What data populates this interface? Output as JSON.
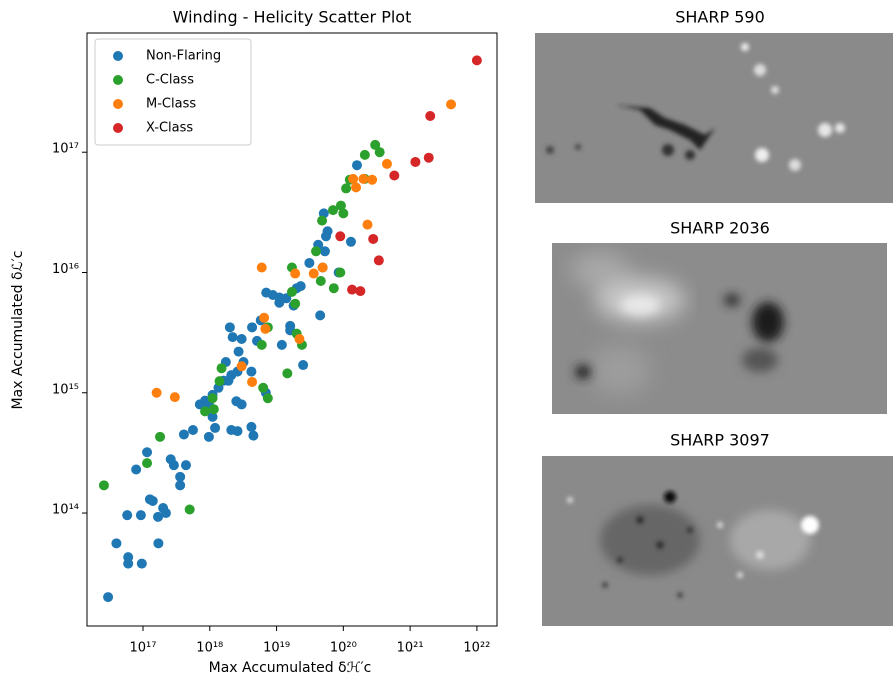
{
  "chart_data": {
    "type": "scatter",
    "title": "Winding - Helicity Scatter Plot",
    "x_label": "Max Accumulated δℋ′c",
    "y_label": "Max Accumulated δℒ′c",
    "log_x": true,
    "log_y": true,
    "grid": false,
    "legend": "upper left",
    "xlim": [
      1.45e+16,
      2e+22
    ],
    "ylim": [
      11500000000000.0,
      9.8e+17
    ],
    "xticks": [
      {
        "value": 1e+17,
        "label": "10¹⁷"
      },
      {
        "value": 1e+18,
        "label": "10¹⁸"
      },
      {
        "value": 1e+19,
        "label": "10¹⁹"
      },
      {
        "value": 1e+20,
        "label": "10²⁰"
      },
      {
        "value": 1e+21,
        "label": "10²¹"
      },
      {
        "value": 1e+22,
        "label": "10²²"
      }
    ],
    "yticks": [
      {
        "value": 100000000000000.0,
        "label": "10¹⁴"
      },
      {
        "value": 1000000000000000.0,
        "label": "10¹⁵"
      },
      {
        "value": 1e+16,
        "label": "10¹⁶"
      },
      {
        "value": 1e+17,
        "label": "10¹⁷"
      }
    ],
    "series": [
      {
        "name": "Non-Flaring",
        "color": "#1f77b4",
        "x": [
          3e+16,
          4e+16,
          6e+16,
          6e+16,
          9.6e+16,
          5.8e+16,
          9.3e+16,
          1.7e+17,
          1.68e+17,
          1.27e+17,
          1.4e+17,
          2e+17,
          2.2e+17,
          7.9e+16,
          1.15e+17,
          2.6e+17,
          2.9e+17,
          3.6e+17,
          3.6e+17,
          4.4e+17,
          4.1e+17,
          5.6e+17,
          9.7e+17,
          1.2e+18,
          2.1e+18,
          2.6e+18,
          4.2e+18,
          4.5e+18,
          8.5e+17,
          9.7e+17,
          1.1e+18,
          1.6e+18,
          2.5e+18,
          3e+18,
          1.1e+18,
          1.35e+18,
          2.1e+18,
          3.2e+18,
          2.6e+18,
          1.74e+18,
          2.7e+18,
          3e+18,
          2.2e+18,
          2e+18,
          4.3e+18,
          5.1e+18,
          5.8e+18,
          1.2e+19,
          6.9e+18,
          1.6e+19,
          1.6e+19,
          2.5e+19,
          1.1e+19,
          7e+18,
          8.8e+18,
          1.1e+19,
          1.4e+19,
          1.8e+19,
          2e+19,
          2.3e+19,
          3.1e+19,
          4.2e+19,
          5.1e+19,
          5.8e+19,
          5.5e+19,
          5.3e+19,
          4.9e+19,
          8.5e+19,
          1.3e+20,
          1.6e+20,
          4.5e+19,
          4.2e+18,
          1.9e+18,
          7.1e+17
        ],
        "values": [
          20000000000000.0,
          56000000000000.0,
          43000000000000.0,
          38000000000000.0,
          38000000000000.0,
          96000000000000.0,
          96000000000000.0,
          56000000000000.0,
          93000000000000.0,
          130000000000000.0,
          126000000000000.0,
          110000000000000.0,
          100000000000000.0,
          230000000000000.0,
          320000000000000.0,
          280000000000000.0,
          250000000000000.0,
          200000000000000.0,
          170000000000000.0,
          250000000000000.0,
          450000000000000.0,
          490000000000000.0,
          430000000000000.0,
          510000000000000.0,
          490000000000000.0,
          480000000000000.0,
          520000000000000.0,
          440000000000000.0,
          860000000000000.0,
          800000000000000.0,
          630000000000000.0,
          1260000000000000.0,
          850000000000000.0,
          800000000000000.0,
          960000000000000.0,
          1100000000000000.0,
          1400000000000000.0,
          1800000000000000.0,
          1500000000000000.0,
          1800000000000000.0,
          2200000000000000.0,
          2800000000000000.0,
          2900000000000000.0,
          3500000000000000.0,
          3500000000000000.0,
          2700000000000000.0,
          4000000000000000.0,
          2500000000000000.0,
          1000000000000000.0,
          3600000000000000.0,
          3300000000000000.0,
          1700000000000000.0,
          5600000000000000.0,
          6800000000000000.0,
          6500000000000000.0,
          6200000000000000.0,
          6100000000000000.0,
          5300000000000000.0,
          7400000000000000.0,
          7700000000000000.0,
          1.2e+16,
          1.7e+16,
          3.1e+16,
          2.2e+16,
          2e+16,
          1.5e+16,
          1.1e+16,
          1e+16,
          1.8e+16,
          7.8e+16,
          4400000000000000.0,
          1500000000000000.0,
          1260000000000000.0,
          800000000000000.0
        ]
      },
      {
        "name": "C-Class",
        "color": "#2ca02c",
        "x": [
          2.6e+16,
          5e+17,
          1.15e+17,
          1.8e+17,
          8.5e+17,
          1.15e+18,
          1.5e+18,
          6.3e+18,
          7.4e+18,
          6e+18,
          1.45e+19,
          2.4e+19,
          2e+19,
          1.9e+19,
          1.7e+19,
          4.6e+19,
          7.2e+19,
          9e+19,
          3.9e+19,
          4.8e+19,
          7e+19,
          9.2e+19,
          1.1e+20,
          1.25e+20,
          2.1e+20,
          3e+20,
          3.5e+20,
          2.1e+20,
          1e+20,
          1.7e+19,
          1.4e+18,
          1.1e+18,
          7.4e+18
        ],
        "values": [
          170000000000000.0,
          107000000000000.0,
          260000000000000.0,
          430000000000000.0,
          700000000000000.0,
          730000000000000.0,
          1600000000000000.0,
          1100000000000000.0,
          900000000000000.0,
          2500000000000000.0,
          1450000000000000.0,
          2500000000000000.0,
          3100000000000000.0,
          5500000000000000.0,
          1.1e+16,
          8500000000000000.0,
          7400000000000000.0,
          1e+16,
          1.5e+16,
          2.7e+16,
          3.3e+16,
          3.6e+16,
          5e+16,
          5.9e+16,
          9.5e+16,
          1.15e+17,
          1e+17,
          6e+16,
          3.1e+16,
          6900000000000000.0,
          1250000000000000.0,
          900000000000000.0,
          3500000000000000.0
        ]
      },
      {
        "name": "M-Class",
        "color": "#ff7f0e",
        "x": [
          4.1e+21,
          4.5e+20,
          2.7e+20,
          2e+20,
          1.55e+20,
          1.4e+20,
          2.3e+20,
          1.9e+19,
          3.6e+19,
          4.9e+19,
          6e+18,
          6.5e+18,
          6.8e+18,
          3e+18,
          4.3e+18,
          2.2e+19,
          1.6e+17,
          3e+17
        ],
        "values": [
          2.5e+17,
          8e+16,
          5.9e+16,
          6e+16,
          5.1e+16,
          6e+16,
          2.5e+16,
          9800000000000000.0,
          9800000000000000.0,
          1.1e+16,
          1.1e+16,
          4200000000000000.0,
          3400000000000000.0,
          1660000000000000.0,
          1230000000000000.0,
          2800000000000000.0,
          1000000000000000.0,
          920000000000000.0
        ]
      },
      {
        "name": "X-Class",
        "color": "#d62728",
        "x": [
          1e+22,
          2e+21,
          1.9e+21,
          1.2e+21,
          5.8e+20,
          9e+19,
          2.8e+20,
          3.4e+20,
          1.35e+20,
          1.8e+20
        ],
        "values": [
          5.8e+17,
          2e+17,
          9e+16,
          8.3e+16,
          6.4e+16,
          2e+16,
          1.9e+16,
          1.26e+16,
          7200000000000000.0,
          7000000000000000.0
        ]
      }
    ]
  },
  "images": [
    {
      "title": "SHARP 590"
    },
    {
      "title": "SHARP 2036"
    },
    {
      "title": "SHARP 3097"
    }
  ]
}
